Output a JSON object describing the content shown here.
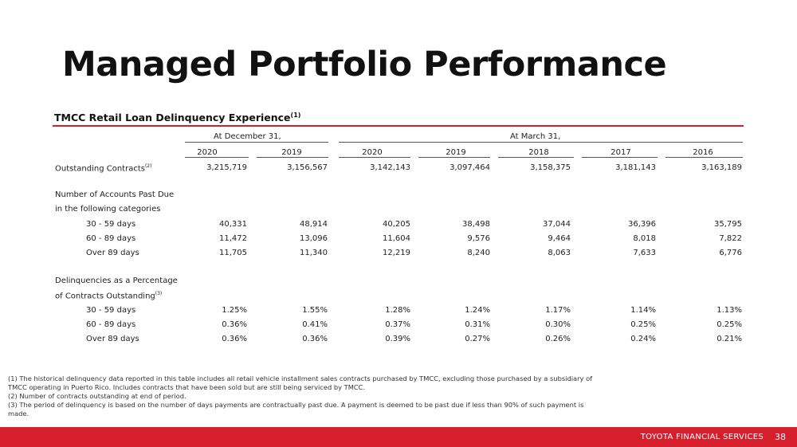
{
  "title": "Managed Portfolio Performance",
  "subtitle": "TMCC Retail Loan Delinquency Experience",
  "subtitle_note": "(1)",
  "accent_color": "#d71f2b",
  "groups": {
    "december": "At December 31,",
    "march": "At March 31,"
  },
  "years": [
    "2020",
    "2019",
    "2020",
    "2019",
    "2018",
    "2017",
    "2016"
  ],
  "rows": {
    "outstanding": {
      "label": "Outstanding Contracts",
      "note": "(2)",
      "values": [
        "3,215,719",
        "3,156,567",
        "3,142,143",
        "3,097,464",
        "3,158,375",
        "3,181,143",
        "3,163,189"
      ]
    },
    "past_due_heading_1": "Number of Accounts Past Due",
    "past_due_heading_2": "in the following categories",
    "past_due": [
      {
        "label": "30 - 59 days",
        "values": [
          "40,331",
          "48,914",
          "40,205",
          "38,498",
          "37,044",
          "36,396",
          "35,795"
        ]
      },
      {
        "label": "60 - 89 days",
        "values": [
          "11,472",
          "13,096",
          "11,604",
          "9,576",
          "9,464",
          "8,018",
          "7,822"
        ]
      },
      {
        "label": "Over 89 days",
        "values": [
          "11,705",
          "11,340",
          "12,219",
          "8,240",
          "8,063",
          "7,633",
          "6,776"
        ]
      }
    ],
    "pct_heading_1": "Delinquencies as a Percentage",
    "pct_heading_2": "of Contracts Outstanding",
    "pct_note": "(3)",
    "pct": [
      {
        "label": "30 - 59 days",
        "values": [
          "1.25%",
          "1.55%",
          "1.28%",
          "1.24%",
          "1.17%",
          "1.14%",
          "1.13%"
        ]
      },
      {
        "label": "60 - 89 days",
        "values": [
          "0.36%",
          "0.41%",
          "0.37%",
          "0.31%",
          "0.30%",
          "0.25%",
          "0.25%"
        ]
      },
      {
        "label": "Over 89 days",
        "values": [
          "0.36%",
          "0.36%",
          "0.39%",
          "0.27%",
          "0.26%",
          "0.24%",
          "0.21%"
        ]
      }
    ]
  },
  "footnotes": [
    "(1) The historical delinquency data reported in this table includes all retail vehicle installment sales contracts purchased by TMCC, excluding those purchased by a subsidiary of TMCC operating in Puerto Rico.  Includes contracts that have been sold but are still being serviced by TMCC.",
    "(2) Number of contracts outstanding at end of period.",
    "(3) The period of delinquency is based on the number of days payments are contractually past due.  A payment is deemed to be past due if less than 90% of such payment is made."
  ],
  "footer": {
    "company": "TOYOTA FINANCIAL SERVICES",
    "page": "38"
  }
}
